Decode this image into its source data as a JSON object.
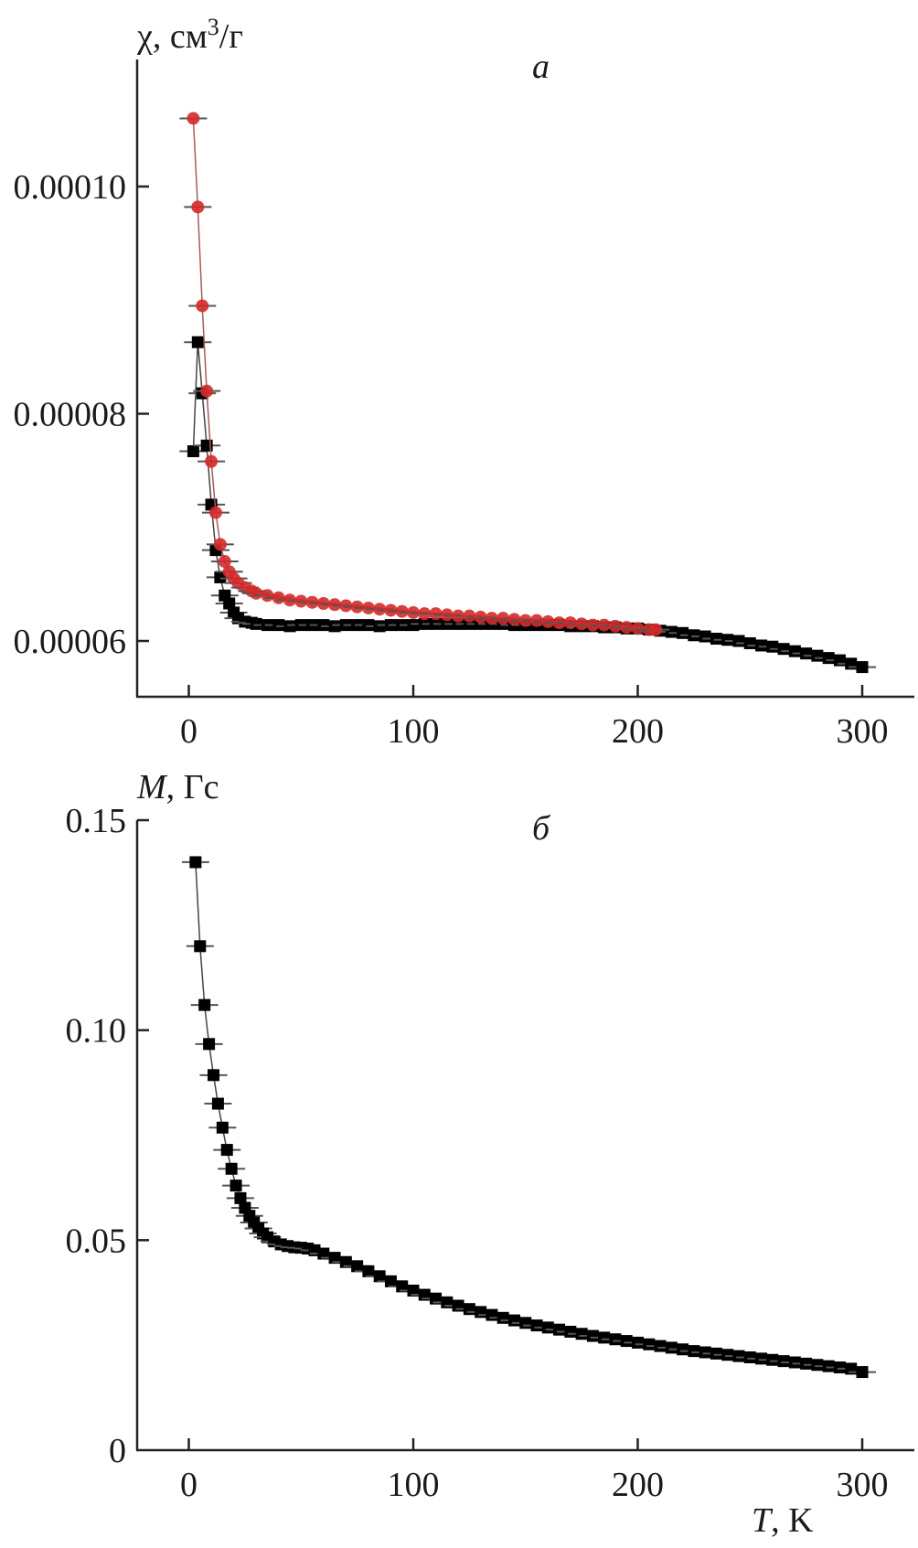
{
  "chart_data": [
    {
      "type": "scatter",
      "panel_label": "a",
      "ylabel_prefix": "χ, см",
      "ylabel_sup": "3",
      "ylabel_suffix": "/г",
      "xlabel": "",
      "xlim": [
        -25,
        322
      ],
      "ylim": [
        5.51e-05,
        0.000111
      ],
      "xticks": [
        0,
        100,
        200,
        300
      ],
      "xtick_labels": [
        "0",
        "100",
        "200",
        "300"
      ],
      "yticks": [
        6e-05,
        8e-05,
        0.0001
      ],
      "ytick_labels": [
        "0.00006",
        "0.00008",
        "0.00010"
      ],
      "grid": false,
      "series": [
        {
          "name": "black squares",
          "marker": "square",
          "color": "#000000",
          "x": [
            2,
            4,
            6,
            8,
            10,
            12,
            14,
            16,
            18,
            20,
            22,
            25,
            28,
            30,
            35,
            40,
            45,
            50,
            55,
            60,
            65,
            70,
            75,
            80,
            85,
            90,
            95,
            100,
            105,
            110,
            115,
            120,
            125,
            130,
            135,
            140,
            145,
            150,
            155,
            160,
            165,
            170,
            175,
            180,
            185,
            190,
            195,
            200,
            205,
            210,
            215,
            220,
            225,
            230,
            235,
            240,
            245,
            250,
            255,
            260,
            265,
            270,
            275,
            280,
            285,
            290,
            295,
            300
          ],
          "y": [
            7.67e-05,
            8.63e-05,
            8.18e-05,
            7.72e-05,
            7.2e-05,
            6.8e-05,
            6.56e-05,
            6.4e-05,
            6.33e-05,
            6.25e-05,
            6.2e-05,
            6.17e-05,
            6.16e-05,
            6.15e-05,
            6.14e-05,
            6.14e-05,
            6.13e-05,
            6.14e-05,
            6.14e-05,
            6.14e-05,
            6.13e-05,
            6.14e-05,
            6.14e-05,
            6.14e-05,
            6.13e-05,
            6.14e-05,
            6.14e-05,
            6.14e-05,
            6.15e-05,
            6.15e-05,
            6.15e-05,
            6.15e-05,
            6.15e-05,
            6.15e-05,
            6.15e-05,
            6.15e-05,
            6.14e-05,
            6.14e-05,
            6.14e-05,
            6.14e-05,
            6.14e-05,
            6.13e-05,
            6.13e-05,
            6.13e-05,
            6.12e-05,
            6.12e-05,
            6.11e-05,
            6.11e-05,
            6.1e-05,
            6.09e-05,
            6.08e-05,
            6.07e-05,
            6.05e-05,
            6.04e-05,
            6.02e-05,
            6.01e-05,
            6e-05,
            5.98e-05,
            5.96e-05,
            5.95e-05,
            5.93e-05,
            5.91e-05,
            5.89e-05,
            5.87e-05,
            5.85e-05,
            5.83e-05,
            5.8e-05,
            5.77e-05
          ]
        },
        {
          "name": "red circles",
          "marker": "circle",
          "color": "#d42a2a",
          "x": [
            2,
            4,
            6,
            8,
            10,
            12,
            14,
            16,
            18,
            20,
            22,
            25,
            28,
            30,
            35,
            40,
            45,
            50,
            55,
            60,
            65,
            70,
            75,
            80,
            85,
            90,
            95,
            100,
            105,
            110,
            115,
            120,
            125,
            130,
            135,
            140,
            145,
            150,
            155,
            160,
            165,
            170,
            175,
            180,
            185,
            190,
            195,
            200,
            205,
            208
          ],
          "y": [
            0.000106,
            9.82e-05,
            8.95e-05,
            8.2e-05,
            7.58e-05,
            7.13e-05,
            6.85e-05,
            6.7e-05,
            6.61e-05,
            6.55e-05,
            6.51e-05,
            6.47e-05,
            6.44e-05,
            6.42e-05,
            6.4e-05,
            6.38e-05,
            6.36e-05,
            6.35e-05,
            6.34e-05,
            6.33e-05,
            6.32e-05,
            6.31e-05,
            6.3e-05,
            6.29e-05,
            6.28e-05,
            6.27e-05,
            6.26e-05,
            6.25e-05,
            6.24e-05,
            6.24e-05,
            6.23e-05,
            6.22e-05,
            6.22e-05,
            6.21e-05,
            6.2e-05,
            6.2e-05,
            6.19e-05,
            6.18e-05,
            6.18e-05,
            6.17e-05,
            6.16e-05,
            6.16e-05,
            6.15e-05,
            6.14e-05,
            6.14e-05,
            6.13e-05,
            6.12e-05,
            6.11e-05,
            6.1e-05,
            6.1e-05
          ]
        }
      ]
    },
    {
      "type": "scatter",
      "panel_label": "б",
      "ylabel_italic": "M",
      "ylabel_suffix": ", Гс",
      "xlabel_italic": "T",
      "xlabel_suffix": ", K",
      "xlim": [
        -25,
        322
      ],
      "ylim": [
        0,
        0.15
      ],
      "xticks": [
        0,
        100,
        200,
        300
      ],
      "xtick_labels": [
        "0",
        "100",
        "200",
        "300"
      ],
      "yticks": [
        0,
        0.05,
        0.1,
        0.15
      ],
      "ytick_labels": [
        "0",
        "0.05",
        "0.10",
        "0.15"
      ],
      "grid": false,
      "series": [
        {
          "name": "M(T)",
          "marker": "square",
          "color": "#000000",
          "x": [
            3,
            5,
            7,
            9,
            11,
            13,
            15,
            17,
            19,
            21,
            23,
            25,
            27,
            29,
            31,
            33,
            35,
            38,
            41,
            44,
            47,
            50,
            53,
            56,
            60,
            65,
            70,
            75,
            80,
            85,
            90,
            95,
            100,
            105,
            110,
            115,
            120,
            125,
            130,
            135,
            140,
            145,
            150,
            155,
            160,
            165,
            170,
            175,
            180,
            185,
            190,
            195,
            200,
            205,
            210,
            215,
            220,
            225,
            230,
            235,
            240,
            245,
            250,
            255,
            260,
            265,
            270,
            275,
            280,
            285,
            290,
            295,
            300
          ],
          "y": [
            0.14,
            0.12,
            0.106,
            0.0967,
            0.0893,
            0.0825,
            0.0768,
            0.0715,
            0.067,
            0.063,
            0.06,
            0.0577,
            0.0558,
            0.0542,
            0.0528,
            0.0516,
            0.0507,
            0.0497,
            0.049,
            0.0486,
            0.0483,
            0.0482,
            0.048,
            0.0476,
            0.0468,
            0.0458,
            0.0448,
            0.0438,
            0.0426,
            0.0414,
            0.0402,
            0.039,
            0.038,
            0.037,
            0.0361,
            0.0352,
            0.0344,
            0.0336,
            0.0329,
            0.0322,
            0.0315,
            0.0309,
            0.0303,
            0.0297,
            0.0292,
            0.0287,
            0.0282,
            0.0277,
            0.0272,
            0.0268,
            0.0264,
            0.026,
            0.0256,
            0.0252,
            0.0248,
            0.0244,
            0.024,
            0.0236,
            0.0233,
            0.023,
            0.0227,
            0.0224,
            0.0221,
            0.0218,
            0.0215,
            0.0212,
            0.0209,
            0.0206,
            0.0203,
            0.02,
            0.0197,
            0.0194,
            0.0186
          ]
        }
      ]
    }
  ]
}
